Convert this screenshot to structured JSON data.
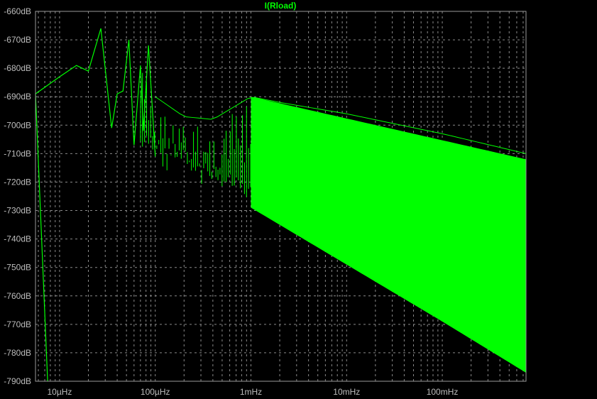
{
  "chart_data": {
    "type": "line",
    "title": "I(Rload)",
    "xscale": "log",
    "x_unit": "Hz",
    "xlim": [
      5.6e-06,
      0.75
    ],
    "ylim": [
      -790,
      -660
    ],
    "grid": true,
    "series_color": "#00ff00",
    "background": "#000000",
    "y_ticks": [
      "-660dB",
      "-670dB",
      "-680dB",
      "-690dB",
      "-700dB",
      "-710dB",
      "-720dB",
      "-730dB",
      "-740dB",
      "-750dB",
      "-760dB",
      "-770dB",
      "-780dB",
      "-790dB"
    ],
    "y_tick_values": [
      -660,
      -670,
      -680,
      -690,
      -700,
      -710,
      -720,
      -730,
      -740,
      -750,
      -760,
      -770,
      -780,
      -790
    ],
    "x_ticks": [
      "10µHz",
      "100µHz",
      "1mHz",
      "10mHz",
      "100mHz"
    ],
    "x_tick_values": [
      1e-05,
      0.0001,
      0.001,
      0.01,
      0.1
    ],
    "series": [
      {
        "name": "I(Rload)",
        "upper_envelope": {
          "x": [
            5.6e-06,
            1e-05,
            1.5e-05,
            2e-05,
            2.7e-05,
            3.5e-05,
            4.3e-05,
            5.3e-05,
            7e-05,
            0.0001,
            0.0002,
            0.0004,
            0.001,
            0.002,
            0.01,
            0.1,
            0.75
          ],
          "y": [
            -689,
            -683,
            -679,
            -681,
            -666,
            -701,
            -689,
            -670,
            -675,
            -690,
            -697,
            -698,
            -690,
            -692,
            -696,
            -703,
            -710
          ]
        },
        "lower_envelope": {
          "x": [
            0.0001,
            0.001,
            0.01,
            0.1,
            0.75
          ],
          "y": [
            -711,
            -729,
            -749,
            -769,
            -787
          ]
        },
        "initial_drop": {
          "x": [
            5.6e-06,
            7.5e-06
          ],
          "y": [
            -689,
            -790
          ]
        }
      }
    ]
  }
}
